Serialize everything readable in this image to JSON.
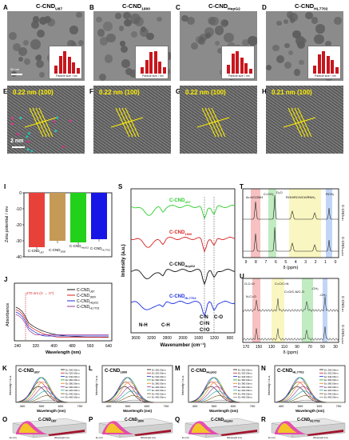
{
  "panels": {
    "A": {
      "letter": "A",
      "title": "C-CND",
      "sub": "U87",
      "scale": "50 nm"
    },
    "B": {
      "letter": "B",
      "title": "C-CND",
      "sub": "1800"
    },
    "C": {
      "letter": "C",
      "title": "C-CND",
      "sub": "HepG2"
    },
    "D": {
      "letter": "D",
      "title": "C-CND",
      "sub": "HL7702"
    },
    "E": {
      "letter": "E",
      "ann": "0.22 nm (100)",
      "scale": "2 nm"
    },
    "F": {
      "letter": "F",
      "ann": "0.22 nm (100)"
    },
    "G": {
      "letter": "G",
      "ann": "0.22 nm (100)"
    },
    "H": {
      "letter": "H",
      "ann": "0.21 nm (100)"
    },
    "I": {
      "letter": "I"
    },
    "J": {
      "letter": "J"
    },
    "S": {
      "letter": "S"
    },
    "T": {
      "letter": "T"
    },
    "U": {
      "letter": "U"
    },
    "K": {
      "letter": "K",
      "title": "C-CND",
      "sub": "U87"
    },
    "L": {
      "letter": "L",
      "title": "C-CND",
      "sub": "1800"
    },
    "M": {
      "letter": "M",
      "title": "C-CND",
      "sub": "HepG2"
    },
    "N": {
      "letter": "N",
      "title": "C-CND",
      "sub": "HL7702"
    },
    "O": {
      "letter": "O",
      "title": "C-CND",
      "sub": "U87"
    },
    "P": {
      "letter": "P",
      "title": "C-CND",
      "sub": "1800"
    },
    "Q": {
      "letter": "Q",
      "title": "C-CND",
      "sub": "HepG2"
    },
    "R": {
      "letter": "R",
      "title": "C-CND",
      "sub": "HL7702"
    }
  },
  "inset_axis_label": "Particle size / nm",
  "zeta": {
    "ylabel": "Zeta potential / mv",
    "yticks": [
      "0",
      "-10",
      "-20",
      "-30",
      "-40"
    ],
    "ylim": [
      -40,
      0
    ],
    "bars": [
      {
        "name": "C-CND",
        "sub": "U87",
        "value": -34,
        "color": "#e8413a"
      },
      {
        "name": "C-CND",
        "sub": "1800",
        "value": -30,
        "color": "#c59a56"
      },
      {
        "name": "C-CND",
        "sub": "HepG2",
        "value": -31,
        "color": "#21d11a"
      },
      {
        "name": "C-CND",
        "sub": "HL7702",
        "value": -29,
        "color": "#1616e6"
      }
    ]
  },
  "uv": {
    "ylabel": "Absorbance",
    "xlabel": "Wavelength (nm)",
    "xticks": [
      "240",
      "320",
      "400",
      "480",
      "560",
      "640"
    ],
    "annotation": "270 nm (π → π*)",
    "legend": [
      {
        "name": "C-CND",
        "sub": "U87",
        "color": "#111111"
      },
      {
        "name": "C-CND",
        "sub": "1800",
        "color": "#d71e1e"
      },
      {
        "name": "C-CND",
        "sub": "HepG2",
        "color": "#1d2fd8"
      },
      {
        "name": "C-CND",
        "sub": "HL7702",
        "color": "#9a3a9a"
      }
    ]
  },
  "ftir": {
    "ylabel": "Intensity (a.u.)",
    "xlabel": "Wavenumber (cm⁻¹)",
    "xticks": [
      "3600",
      "3200",
      "2800",
      "2000",
      "1600",
      "1200",
      "800"
    ],
    "series": [
      {
        "name": "C-CND",
        "sub": "U87",
        "color": "#2ecc2e"
      },
      {
        "name": "C-CND",
        "sub": "1800",
        "color": "#d72020"
      },
      {
        "name": "C-CND",
        "sub": "HepG2",
        "color": "#111111"
      },
      {
        "name": "C-CND",
        "sub": "HL7702",
        "color": "#1a2ee0"
      }
    ],
    "peaks": [
      "N-H",
      "C-H",
      "C-N",
      "C-O",
      "C=N",
      "C=O"
    ]
  },
  "hnmr": {
    "xlabel": "δ (ppm)",
    "xticks": [
      "9",
      "8",
      "7",
      "6",
      "5",
      "4",
      "3",
      "2",
      "1",
      "0"
    ],
    "labels": [
      "Ar-H/CONH",
      "C=CH₂",
      "D₂O",
      "ROH/RCH/CH/RNH₂",
      "RCH₃"
    ],
    "traces": [
      {
        "name": "C-CND",
        "sub": "U87"
      },
      {
        "name": "C-CND",
        "sub": "HepG2"
      }
    ]
  },
  "cnmr": {
    "xlabel": "δ (ppm)",
    "xticks": [
      "170",
      "150",
      "130",
      "110",
      "90",
      "70",
      "50",
      "30"
    ],
    "labels": [
      "O-C=O",
      "C=C/C=N",
      "N-C=O",
      "C=O/C-N/C-O",
      "-CH₂",
      "-CH₃"
    ],
    "traces": [
      {
        "name": "C-CND",
        "sub": "U87"
      },
      {
        "name": "C-CND",
        "sub": "HepG2"
      }
    ]
  },
  "pl": {
    "ylabel": "Intensity / a.u.",
    "xlabel": "Wavelength (nm)",
    "xticks": [
      "400",
      "500",
      "600",
      "700"
    ],
    "legend": [
      "Ex 300.00nm",
      "Ex 320.00nm",
      "Ex 340.00nm",
      "Ex 360.00nm",
      "Ex 380.00nm",
      "Ex 400.00nm",
      "Ex 420.00nm",
      "Ex 440.00nm",
      "Ex 460.00nm"
    ]
  },
  "pl3d": {
    "axis1": "Wavelength (nm)",
    "axis2": "Ex (nm)"
  }
}
